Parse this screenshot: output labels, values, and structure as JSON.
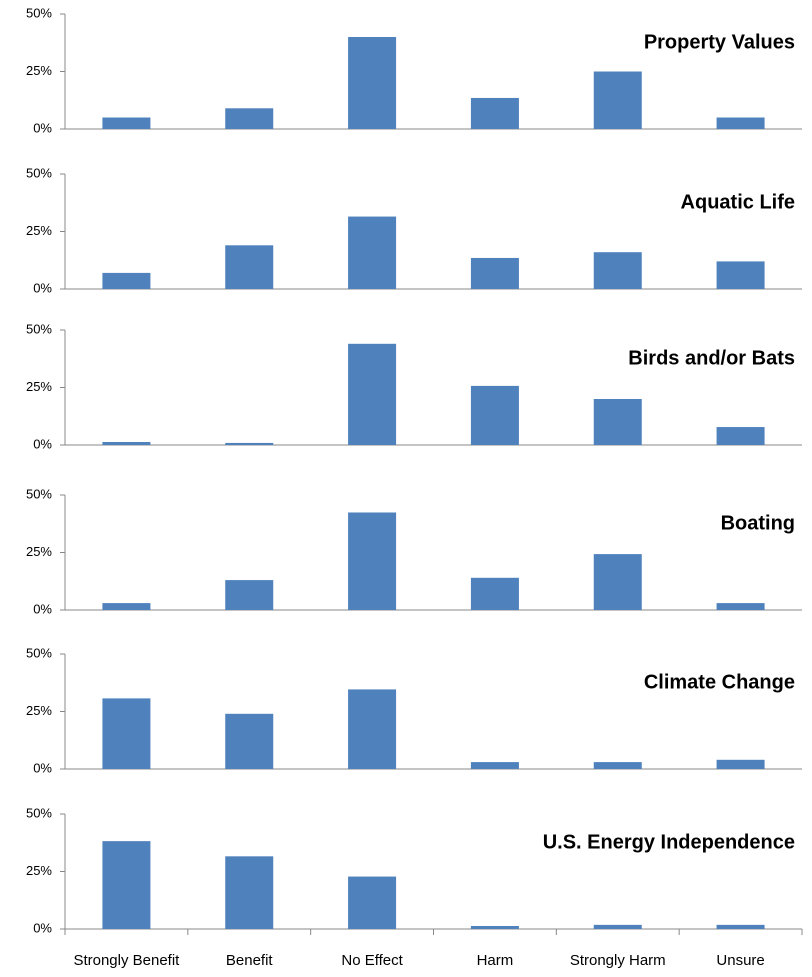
{
  "chart_data": [
    {
      "type": "bar",
      "title": "Property Values",
      "values": [
        5,
        9,
        40,
        13.5,
        25,
        5
      ],
      "color": "#4f81bd",
      "ylim": [
        0,
        50
      ],
      "yticks": [
        {
          "value": 0,
          "label": "0%"
        },
        {
          "value": 25,
          "label": "25%"
        },
        {
          "value": 50,
          "label": "50%"
        }
      ],
      "grid": false
    },
    {
      "type": "bar",
      "title": "Aquatic Life",
      "values": [
        7,
        19,
        31.5,
        13.5,
        16,
        12
      ],
      "color": "#4f81bd",
      "ylim": [
        0,
        50
      ],
      "yticks": [
        {
          "value": 0,
          "label": "0%"
        },
        {
          "value": 25,
          "label": "25%"
        },
        {
          "value": 50,
          "label": "50%"
        }
      ],
      "grid": false
    },
    {
      "type": "bar",
      "title": "Birds and/or Bats",
      "values": [
        1.3,
        0.9,
        44,
        25.7,
        20,
        7.8
      ],
      "color": "#4f81bd",
      "ylim": [
        0,
        50
      ],
      "yticks": [
        {
          "value": 0,
          "label": "0%"
        },
        {
          "value": 25,
          "label": "25%"
        },
        {
          "value": 50,
          "label": "50%"
        }
      ],
      "grid": false
    },
    {
      "type": "bar",
      "title": "Boating",
      "values": [
        3,
        13,
        42.4,
        14,
        24.3,
        3
      ],
      "color": "#4f81bd",
      "ylim": [
        0,
        50
      ],
      "yticks": [
        {
          "value": 0,
          "label": "0%"
        },
        {
          "value": 25,
          "label": "25%"
        },
        {
          "value": 50,
          "label": "50%"
        }
      ],
      "grid": false
    },
    {
      "type": "bar",
      "title": "Climate Change",
      "values": [
        30.7,
        24,
        34.6,
        3,
        3,
        4
      ],
      "color": "#4f81bd",
      "ylim": [
        0,
        50
      ],
      "yticks": [
        {
          "value": 0,
          "label": "0%"
        },
        {
          "value": 25,
          "label": "25%"
        },
        {
          "value": 50,
          "label": "50%"
        }
      ],
      "grid": false
    },
    {
      "type": "bar",
      "title": "U.S. Energy Independence",
      "categories": [
        "Strongly Benefit",
        "Benefit",
        "No Effect",
        "Harm",
        "Strongly Harm",
        "Unsure"
      ],
      "values": [
        38.2,
        31.6,
        22.8,
        1.3,
        1.8,
        1.8
      ],
      "color": "#4f81bd",
      "ylim": [
        0,
        50
      ],
      "yticks": [
        {
          "value": 0,
          "label": "0%"
        },
        {
          "value": 25,
          "label": "25%"
        },
        {
          "value": 50,
          "label": "50%"
        }
      ],
      "grid": false
    }
  ]
}
